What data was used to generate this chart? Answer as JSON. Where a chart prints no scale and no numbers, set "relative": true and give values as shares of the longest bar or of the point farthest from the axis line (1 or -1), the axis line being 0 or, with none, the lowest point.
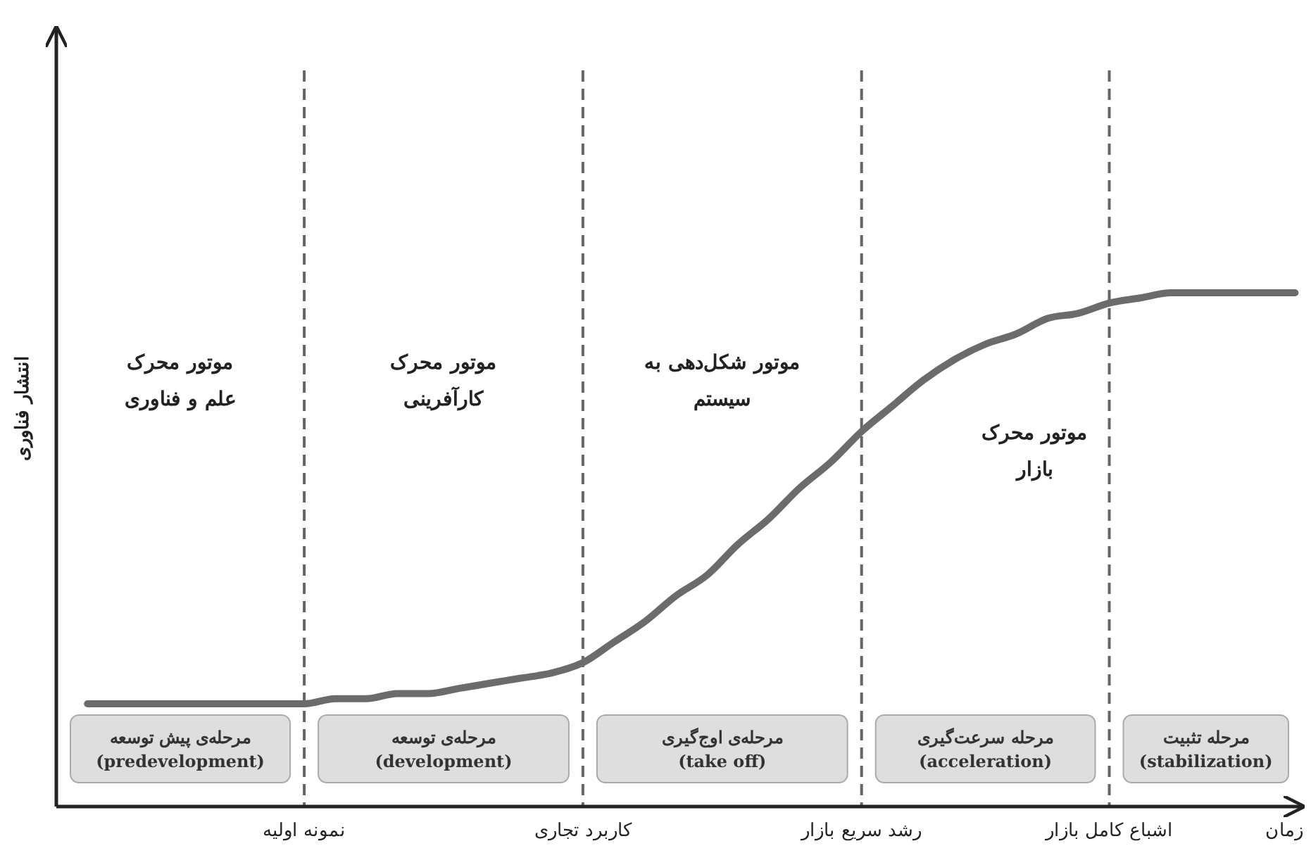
{
  "chart_data": {
    "type": "line",
    "relative": true,
    "xlabel": "زمان",
    "ylabel": "انتشار فناوری",
    "categories": [
      null,
      null,
      null,
      null,
      null,
      null,
      null,
      "نمونه اولیه",
      null,
      null,
      null,
      null,
      null,
      null,
      null,
      null,
      "کاربرد تجاری",
      null,
      null,
      null,
      null,
      null,
      null,
      null,
      null,
      "رشد سریع بازار",
      null,
      null,
      null,
      null,
      null,
      null,
      null,
      "اشباع کامل بازار",
      null,
      null,
      null,
      null,
      null,
      null
    ],
    "series": [
      {
        "color": "#6b6b6b",
        "values": [
          0.2,
          0.2,
          0.2,
          0.2,
          0.2,
          0.2,
          0.2,
          0.2,
          0.21,
          0.21,
          0.22,
          0.22,
          0.23,
          0.24,
          0.25,
          0.26,
          0.28,
          0.32,
          0.36,
          0.41,
          0.45,
          0.51,
          0.56,
          0.62,
          0.67,
          0.73,
          0.78,
          0.83,
          0.87,
          0.9,
          0.92,
          0.95,
          0.96,
          0.98,
          0.99,
          1,
          1,
          1,
          1,
          1
        ]
      }
    ],
    "grid": "x",
    "marker": "none",
    "line_style": "solid",
    "annotations": [
      "مرحله‌ی پیش توسعه\n(predevelopment)",
      "مرحله‌ی توسعه\n(development)",
      "مرحله‌ی اوج‌گیری\n(take off)",
      "مرحله سرعت‌گیری\n(acceleration)",
      "مرحله تثبیت\n(stabilization)",
      "موتور محرک\nعلم و فناوری",
      "موتور محرک\nکارآفرینی",
      "موتور شکل‌دهی به\nسیستم",
      "موتور محرک\nبازار"
    ]
  }
}
